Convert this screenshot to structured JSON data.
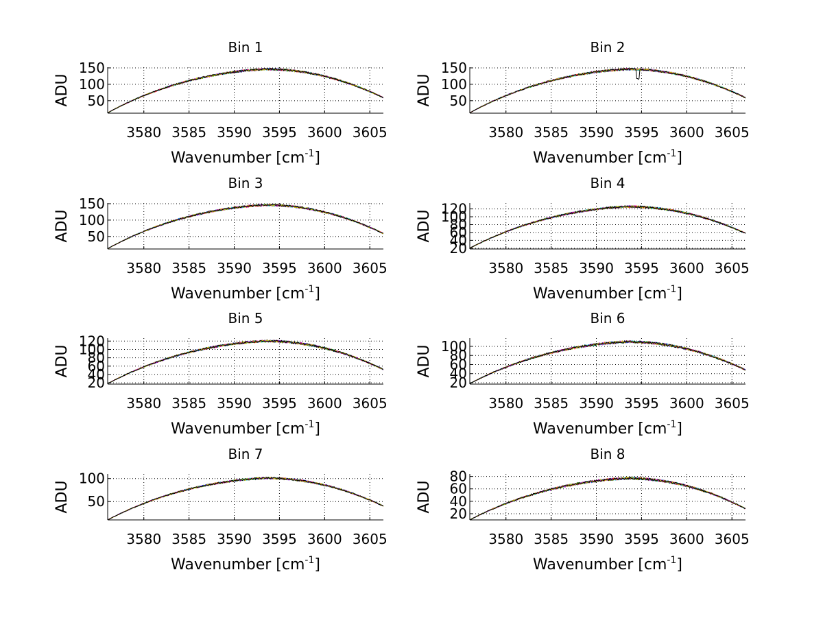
{
  "chart_data": [
    {
      "type": "line",
      "title": "Bin 1",
      "xlabel": "Wavenumber [cm",
      "xlabel_sup": "-1",
      "xlabel_close": "]",
      "ylabel": "ADU",
      "xlim": [
        3576,
        3606.5
      ],
      "ylim": [
        12,
        152
      ],
      "xticks": [
        3580,
        3585,
        3590,
        3595,
        3600,
        3605
      ],
      "yticks": [
        50,
        100,
        150
      ],
      "grid": true,
      "peak": 146,
      "peak_x": 3593.5,
      "end_left": 13,
      "end_right": 59,
      "noise": 3
    },
    {
      "type": "line",
      "title": "Bin 2",
      "xlabel": "Wavenumber [cm",
      "xlabel_sup": "-1",
      "xlabel_close": "]",
      "ylabel": "ADU",
      "xlim": [
        3576,
        3606.5
      ],
      "ylim": [
        12,
        152
      ],
      "xticks": [
        3580,
        3585,
        3590,
        3595,
        3600,
        3605
      ],
      "yticks": [
        50,
        100,
        150
      ],
      "grid": true,
      "peak": 146,
      "peak_x": 3593.5,
      "end_left": 13,
      "end_right": 59,
      "noise": 3,
      "dip_x": 3594.6,
      "dip_depth": 28
    },
    {
      "type": "line",
      "title": "Bin 3",
      "xlabel": "Wavenumber [cm",
      "xlabel_sup": "-1",
      "xlabel_close": "]",
      "ylabel": "ADU",
      "xlim": [
        3576,
        3606.5
      ],
      "ylim": [
        12,
        152
      ],
      "xticks": [
        3580,
        3585,
        3590,
        3595,
        3600,
        3605
      ],
      "yticks": [
        50,
        100,
        150
      ],
      "grid": true,
      "peak": 146,
      "peak_x": 3593.5,
      "end_left": 13,
      "end_right": 59,
      "noise": 3
    },
    {
      "type": "line",
      "title": "Bin 4",
      "xlabel": "Wavenumber [cm",
      "xlabel_sup": "-1",
      "xlabel_close": "]",
      "ylabel": "ADU",
      "xlim": [
        3576,
        3606.5
      ],
      "ylim": [
        18,
        135
      ],
      "xticks": [
        3580,
        3585,
        3590,
        3595,
        3600,
        3605
      ],
      "yticks": [
        20,
        40,
        60,
        80,
        100,
        120
      ],
      "grid": true,
      "peak": 126,
      "peak_x": 3593.5,
      "end_left": 20,
      "end_right": 58,
      "noise": 2.5
    },
    {
      "type": "line",
      "title": "Bin 5",
      "xlabel": "Wavenumber [cm",
      "xlabel_sup": "-1",
      "xlabel_close": "]",
      "ylabel": "ADU",
      "xlim": [
        3576,
        3606.5
      ],
      "ylim": [
        17,
        127
      ],
      "xticks": [
        3580,
        3585,
        3590,
        3595,
        3600,
        3605
      ],
      "yticks": [
        20,
        40,
        60,
        80,
        100,
        120
      ],
      "grid": true,
      "peak": 120,
      "peak_x": 3593.5,
      "end_left": 18,
      "end_right": 52,
      "noise": 2.5
    },
    {
      "type": "line",
      "title": "Bin 6",
      "xlabel": "Wavenumber [cm",
      "xlabel_sup": "-1",
      "xlabel_close": "]",
      "ylabel": "ADU",
      "xlim": [
        3576,
        3606.5
      ],
      "ylim": [
        17,
        118
      ],
      "xticks": [
        3580,
        3585,
        3590,
        3595,
        3600,
        3605
      ],
      "yticks": [
        20,
        40,
        60,
        80,
        100
      ],
      "grid": true,
      "peak": 110,
      "peak_x": 3593.5,
      "end_left": 18,
      "end_right": 48,
      "noise": 2.5
    },
    {
      "type": "line",
      "title": "Bin 7",
      "xlabel": "Wavenumber [cm",
      "xlabel_sup": "-1",
      "xlabel_close": "]",
      "ylabel": "ADU",
      "xlim": [
        3576,
        3606.5
      ],
      "ylim": [
        10,
        110
      ],
      "xticks": [
        3580,
        3585,
        3590,
        3595,
        3600,
        3605
      ],
      "yticks": [
        50,
        100
      ],
      "grid": true,
      "peak": 101,
      "peak_x": 3593.5,
      "end_left": 10,
      "end_right": 40,
      "noise": 2
    },
    {
      "type": "line",
      "title": "Bin 8",
      "xlabel": "Wavenumber [cm",
      "xlabel_sup": "-1",
      "xlabel_close": "]",
      "ylabel": "ADU",
      "xlim": [
        3576,
        3606.5
      ],
      "ylim": [
        10,
        84
      ],
      "xticks": [
        3580,
        3585,
        3590,
        3595,
        3600,
        3605
      ],
      "yticks": [
        20,
        40,
        60,
        80
      ],
      "grid": true,
      "peak": 77,
      "peak_x": 3593.5,
      "end_left": 10,
      "end_right": 28,
      "noise": 1.8
    }
  ],
  "series_colors": [
    "#0000ff",
    "#008000",
    "#ff0000",
    "#00bfbf",
    "#bf00bf",
    "#bfbf00",
    "#000000"
  ]
}
